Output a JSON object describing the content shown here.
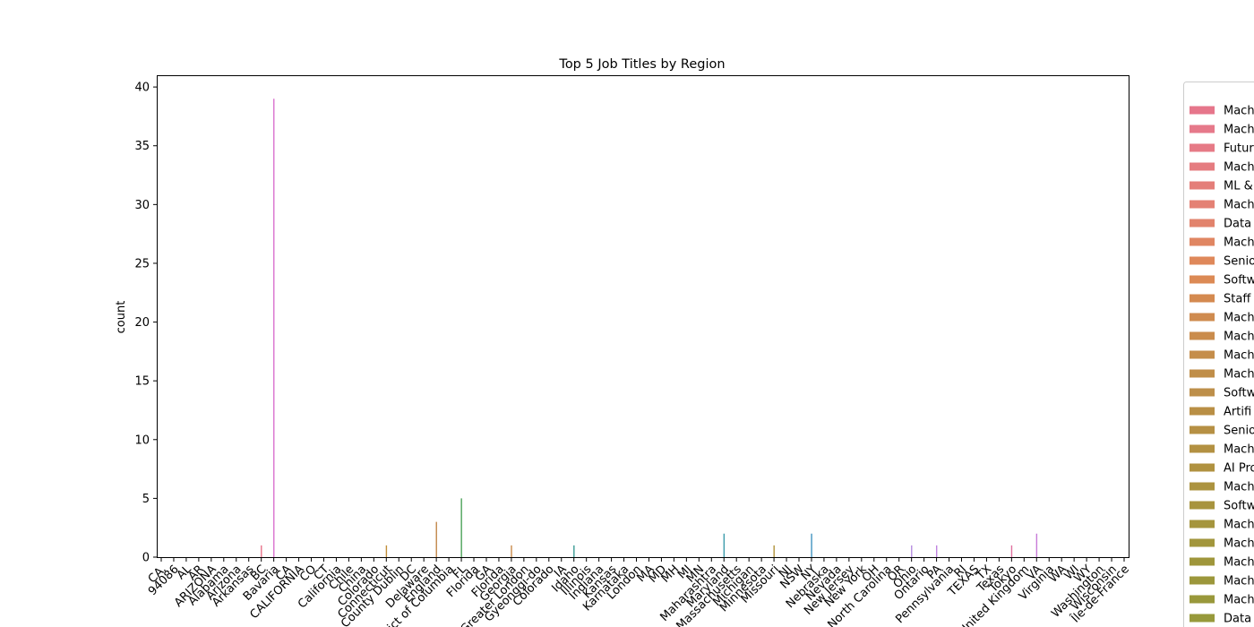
{
  "chart_data": {
    "type": "bar",
    "title": "Top 5 Job Titles by Region",
    "xlabel": "",
    "ylabel": "count",
    "ylim": [
      0,
      41
    ],
    "yticks": [
      0,
      5,
      10,
      15,
      20,
      25,
      30,
      35,
      40
    ],
    "grid": false,
    "legend_placement": "right (clipped at page edge)",
    "categories": [
      "CA.",
      "94086",
      "AL",
      "AR",
      "ARIZONA",
      "Alabama",
      "Arizona",
      "Arkansas",
      "BC",
      "Bavaria",
      "CA",
      "CALIFORNIA",
      "CO",
      "CT",
      "California",
      "Chile",
      "China",
      "Colorado",
      "Connecticut",
      "County Dublin",
      "DC",
      "Delaware",
      "England",
      "District of Columbia",
      "FL",
      "Florida",
      "GA",
      "Florida ",
      "Georgia",
      "Greater London",
      "Gyeonggi-do",
      "Colorado ",
      "IA",
      "Idaho",
      "Illinois",
      "Indiana",
      "Kansas",
      "Karnataka",
      "London",
      "MA",
      "MD",
      "MH",
      "MI",
      "MN",
      "Maharashtra",
      "Maryland",
      "Massachusetts",
      "Michigan",
      "Minnesota",
      "Missouri",
      "NJ",
      "NSW",
      "NY",
      "Nebraska",
      "Nevada",
      "New Jersey",
      "New York",
      "OH",
      "North Carolina",
      "OR",
      "Ohio",
      "Ontario",
      "PA",
      "Pennsylvania",
      "RI",
      "TEXAS",
      "TX",
      "Texas",
      "Tokyo",
      "United Kingdom",
      "VA",
      "Virginia",
      "WA",
      "WI",
      "WY",
      "Washington",
      "Wisconsin",
      "Île-de-France"
    ],
    "bars": [
      {
        "category": "BC",
        "value": 1,
        "color": "#e8738a"
      },
      {
        "category": "Bavaria",
        "value": 39,
        "color": "#db72cf"
      },
      {
        "category": "Connecticut",
        "value": 1,
        "color": "#c18f3a"
      },
      {
        "category": "England",
        "value": 3,
        "color": "#c2884a"
      },
      {
        "category": "FL",
        "value": 5,
        "color": "#4ca35a"
      },
      {
        "category": "Georgia",
        "value": 1,
        "color": "#c98a4b"
      },
      {
        "category": "Idaho",
        "value": 1,
        "color": "#3a9b94"
      },
      {
        "category": "Maryland",
        "value": 2,
        "color": "#3b9bab"
      },
      {
        "category": "Missouri",
        "value": 1,
        "color": "#b0923a"
      },
      {
        "category": "NY",
        "value": 2,
        "color": "#4294c0"
      },
      {
        "category": "Ohio",
        "value": 1,
        "color": "#b58ce0"
      },
      {
        "category": "PA",
        "value": 1,
        "color": "#c083e0"
      },
      {
        "category": "Tokyo",
        "value": 1,
        "color": "#e0709f"
      },
      {
        "category": "VA",
        "value": 2,
        "color": "#c77ad8"
      }
    ],
    "legend": [
      {
        "label": "Mach",
        "color": "#e6768b"
      },
      {
        "label": "Mach",
        "color": "#e6798a"
      },
      {
        "label": "Futur",
        "color": "#e67a86"
      },
      {
        "label": "Mach",
        "color": "#e57c80"
      },
      {
        "label": "ML &",
        "color": "#e47e79"
      },
      {
        "label": "Mach",
        "color": "#e48174"
      },
      {
        "label": "Data",
        "color": "#e2836c"
      },
      {
        "label": "Mach",
        "color": "#e08662"
      },
      {
        "label": "Senio",
        "color": "#df885a"
      },
      {
        "label": "Softw",
        "color": "#dc8a55"
      },
      {
        "label": "Staff",
        "color": "#d48a50"
      },
      {
        "label": "Mach",
        "color": "#cf8b4f"
      },
      {
        "label": "Mach",
        "color": "#ca8c4c"
      },
      {
        "label": "Mach",
        "color": "#c58d4a"
      },
      {
        "label": "Mach",
        "color": "#c08e48"
      },
      {
        "label": "Softw",
        "color": "#bd8f4a"
      },
      {
        "label": "Artifi",
        "color": "#b98f45"
      },
      {
        "label": "Senio",
        "color": "#b69044"
      },
      {
        "label": "Mach",
        "color": "#b39142"
      },
      {
        "label": "AI Pro",
        "color": "#b09240"
      },
      {
        "label": "Mach",
        "color": "#ac933f"
      },
      {
        "label": "Softw",
        "color": "#a8943e"
      },
      {
        "label": "Mach",
        "color": "#a5953d"
      },
      {
        "label": "Mach",
        "color": "#a2963c"
      },
      {
        "label": "Mach",
        "color": "#9f963b"
      },
      {
        "label": "Mach",
        "color": "#9c973b"
      },
      {
        "label": "Mach",
        "color": "#99983b"
      },
      {
        "label": "Data",
        "color": "#97993b"
      }
    ]
  }
}
